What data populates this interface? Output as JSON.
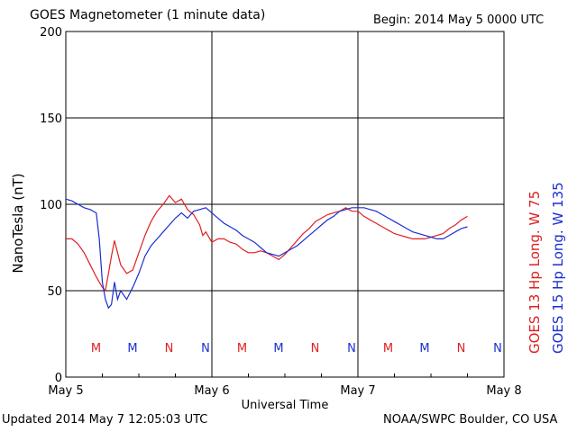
{
  "header": {
    "title": "GOES Magnetometer (1 minute data)",
    "begin": "Begin:  2014 May 5 0000 UTC"
  },
  "footer": {
    "updated": "Updated 2014 May  7 12:05:03 UTC",
    "credit": "NOAA/SWPC Boulder, CO USA"
  },
  "colors": {
    "goes13": "#e02020",
    "goes15": "#1a2fd0",
    "grid": "#000000"
  },
  "chart_data": {
    "type": "line",
    "xlabel": "Universal Time",
    "ylabel": "NanoTesla (nT)",
    "ylim": [
      0,
      200
    ],
    "xlim": [
      "2014-05-05 00:00",
      "2014-05-08 00:00"
    ],
    "x_ticks": [
      "May 5",
      "May 6",
      "May 7",
      "May 8"
    ],
    "y_ticks": [
      0,
      50,
      100,
      150,
      200
    ],
    "grid": true,
    "legend": [
      {
        "label": "GOES 13 Hp  Long. W 75",
        "color": "#e02020"
      },
      {
        "label": "GOES 15 Hp  Long. W 135",
        "color": "#1a2fd0"
      }
    ],
    "markers": [
      {
        "label": "M",
        "hour": 6,
        "series": "GOES 13"
      },
      {
        "label": "M",
        "hour": 12,
        "series": "GOES 15"
      },
      {
        "label": "N",
        "hour": 18,
        "series": "GOES 13"
      },
      {
        "label": "N",
        "hour": 24,
        "series": "GOES 15"
      },
      {
        "label": "M",
        "hour": 30,
        "series": "GOES 13"
      },
      {
        "label": "M",
        "hour": 36,
        "series": "GOES 15"
      },
      {
        "label": "N",
        "hour": 42,
        "series": "GOES 13"
      },
      {
        "label": "N",
        "hour": 48,
        "series": "GOES 15"
      },
      {
        "label": "M",
        "hour": 54,
        "series": "GOES 13"
      },
      {
        "label": "M",
        "hour": 60,
        "series": "GOES 15"
      },
      {
        "label": "N",
        "hour": 66,
        "series": "GOES 13"
      },
      {
        "label": "N",
        "hour": 72,
        "series": "GOES 15"
      }
    ],
    "series": [
      {
        "name": "GOES 13 Hp  Long. W 75",
        "hours": [
          0,
          1,
          2,
          3,
          4,
          5,
          5.5,
          6,
          6.5,
          7,
          7.5,
          8,
          9,
          10,
          11,
          12,
          13,
          14,
          15,
          16,
          17,
          18,
          19,
          20,
          21,
          22,
          22.5,
          23,
          24,
          25,
          26,
          27,
          28,
          29,
          30,
          31,
          32,
          33,
          34,
          35,
          36,
          37,
          38,
          39,
          40,
          41,
          42,
          43,
          44,
          45,
          46,
          47,
          48,
          49,
          50,
          51,
          52,
          53,
          54,
          55,
          56,
          57,
          58,
          59,
          60,
          61,
          62,
          63,
          64,
          65,
          66
        ],
        "nT": [
          80,
          80,
          77,
          72,
          65,
          58,
          55,
          52,
          50,
          60,
          70,
          79,
          65,
          60,
          62,
          72,
          82,
          90,
          96,
          100,
          105,
          101,
          103,
          97,
          94,
          88,
          82,
          84,
          78,
          80,
          80,
          78,
          77,
          74,
          72,
          72,
          73,
          72,
          70,
          68,
          71,
          75,
          79,
          83,
          86,
          90,
          92,
          94,
          95,
          96,
          98,
          96,
          96,
          93,
          91,
          89,
          87,
          85,
          83,
          82,
          81,
          80,
          80,
          80,
          81,
          82,
          83,
          86,
          88,
          91,
          93
        ]
      },
      {
        "name": "GOES 15 Hp  Long. W 135",
        "hours": [
          0,
          1,
          2,
          3,
          4,
          5,
          5.5,
          6,
          6.5,
          7,
          7.5,
          8,
          8.5,
          9,
          10,
          11,
          12,
          13,
          14,
          15,
          16,
          17,
          18,
          19,
          20,
          21,
          22,
          23,
          24,
          25,
          26,
          27,
          28,
          29,
          30,
          31,
          32,
          33,
          34,
          35,
          36,
          37,
          38,
          39,
          40,
          41,
          42,
          43,
          44,
          45,
          46,
          47,
          48,
          49,
          50,
          51,
          52,
          53,
          54,
          55,
          56,
          57,
          58,
          59,
          60,
          61,
          62,
          63,
          64,
          65,
          66
        ],
        "nT": [
          103,
          102,
          100,
          98,
          97,
          95,
          80,
          55,
          45,
          40,
          42,
          55,
          45,
          50,
          45,
          52,
          60,
          70,
          76,
          80,
          84,
          88,
          92,
          95,
          92,
          96,
          97,
          98,
          95,
          92,
          89,
          87,
          85,
          82,
          80,
          78,
          75,
          72,
          71,
          70,
          72,
          74,
          76,
          79,
          82,
          85,
          88,
          91,
          93,
          96,
          97,
          98,
          98,
          98,
          97,
          96,
          94,
          92,
          90,
          88,
          86,
          84,
          83,
          82,
          81,
          80,
          80,
          82,
          84,
          86,
          87
        ]
      }
    ]
  }
}
